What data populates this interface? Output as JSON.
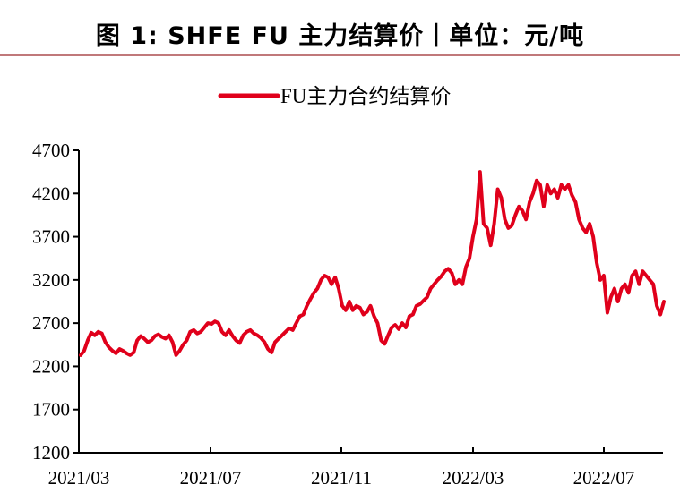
{
  "title": "图 1: SHFE FU 主力结算价丨单位：元/吨",
  "colors": {
    "series": "#e0001b",
    "title_rule": "#c0787a",
    "axis": "#000000"
  },
  "legend": {
    "label": "FU主力合约结算价"
  },
  "chart_data": {
    "type": "line",
    "title": "图 1: SHFE FU 主力结算价丨单位：元/吨",
    "xlabel": "",
    "ylabel": "元/吨",
    "ylim": [
      1200,
      4700
    ],
    "yticks": [
      1200,
      1700,
      2200,
      2700,
      3200,
      3700,
      4200,
      4700
    ],
    "xticks": [
      "2021/03",
      "2021/07",
      "2021/11",
      "2022/03",
      "2022/07"
    ],
    "grid": false,
    "legend_position": "top-center",
    "series": [
      {
        "name": "FU主力合约结算价",
        "x_range": [
          "2021/03",
          "2022/09"
        ],
        "values": [
          2330,
          2380,
          2500,
          2590,
          2560,
          2600,
          2580,
          2480,
          2420,
          2380,
          2350,
          2400,
          2380,
          2350,
          2330,
          2360,
          2500,
          2550,
          2520,
          2480,
          2500,
          2550,
          2570,
          2540,
          2520,
          2560,
          2480,
          2330,
          2380,
          2450,
          2500,
          2600,
          2620,
          2580,
          2600,
          2650,
          2700,
          2690,
          2720,
          2700,
          2600,
          2560,
          2620,
          2550,
          2500,
          2470,
          2560,
          2600,
          2620,
          2580,
          2560,
          2530,
          2480,
          2400,
          2360,
          2480,
          2520,
          2560,
          2600,
          2640,
          2620,
          2700,
          2780,
          2800,
          2900,
          2980,
          3050,
          3100,
          3200,
          3250,
          3230,
          3150,
          3230,
          3100,
          2900,
          2850,
          2950,
          2850,
          2900,
          2880,
          2800,
          2830,
          2900,
          2780,
          2700,
          2500,
          2460,
          2560,
          2650,
          2680,
          2630,
          2700,
          2650,
          2780,
          2800,
          2900,
          2920,
          2960,
          3000,
          3100,
          3150,
          3200,
          3240,
          3300,
          3330,
          3280,
          3150,
          3200,
          3150,
          3350,
          3450,
          3700,
          3900,
          4450,
          3850,
          3800,
          3600,
          3850,
          4250,
          4150,
          3900,
          3800,
          3830,
          3950,
          4050,
          4000,
          3900,
          4100,
          4200,
          4350,
          4300,
          4050,
          4300,
          4200,
          4250,
          4150,
          4300,
          4250,
          4300,
          4180,
          4100,
          3900,
          3800,
          3750,
          3850,
          3700,
          3400,
          3200,
          3250,
          2820,
          3000,
          3100,
          2950,
          3100,
          3150,
          3050,
          3250,
          3300,
          3150,
          3300,
          3250,
          3200,
          3150,
          2900,
          2800,
          2950
        ]
      }
    ]
  }
}
